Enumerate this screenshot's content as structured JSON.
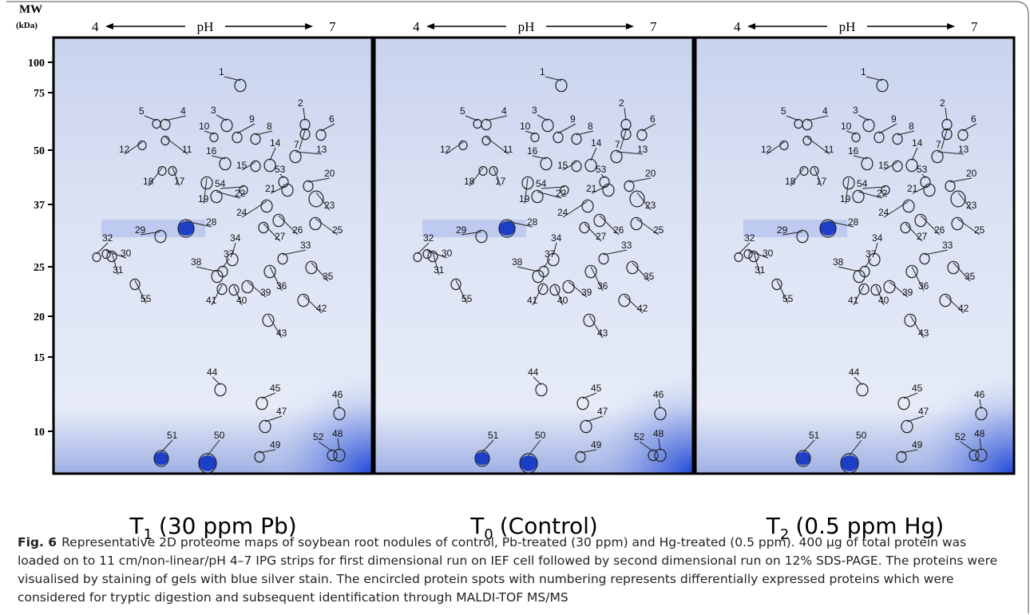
{
  "figure": {
    "mw_axis": {
      "title": "MW",
      "unit": "(kDa)",
      "ticks": [
        "100",
        "75",
        "50",
        "37",
        "25",
        "20",
        "15",
        "10"
      ]
    },
    "gels": [
      {
        "ph_left": "4",
        "ph_label": "pH",
        "ph_right": "7",
        "caption_letter": "T",
        "caption_sub": "1",
        "caption_rest": "(30 ppm Pb)",
        "spots": [
          "1",
          "2",
          "3",
          "4",
          "5",
          "6",
          "7",
          "8",
          "9",
          "10",
          "11",
          "12",
          "13",
          "14",
          "15",
          "16",
          "17",
          "18",
          "19",
          "20",
          "21",
          "22",
          "23",
          "24",
          "25",
          "26",
          "27",
          "28",
          "29",
          "30",
          "31",
          "32",
          "33",
          "34",
          "35",
          "36",
          "37",
          "38",
          "39",
          "40",
          "41",
          "42",
          "43",
          "44",
          "45",
          "46",
          "47",
          "48",
          "49",
          "50",
          "51",
          "52",
          "53",
          "54",
          "55"
        ]
      },
      {
        "ph_left": "4",
        "ph_label": "pH",
        "ph_right": "7",
        "caption_letter": "T",
        "caption_sub": "0",
        "caption_rest": "(Control)",
        "spots": [
          "1",
          "2",
          "3",
          "4",
          "5",
          "6",
          "7",
          "8",
          "9",
          "10",
          "11",
          "12",
          "13",
          "14",
          "15",
          "16",
          "17",
          "18",
          "19",
          "20",
          "21",
          "22",
          "23",
          "24",
          "25",
          "26",
          "27",
          "28",
          "29",
          "30",
          "31",
          "32",
          "33",
          "34",
          "35",
          "36",
          "37",
          "38",
          "39",
          "40",
          "41",
          "42",
          "43",
          "44",
          "45",
          "46",
          "47",
          "48",
          "49",
          "50",
          "51",
          "52",
          "53",
          "54",
          "55"
        ]
      },
      {
        "ph_left": "4",
        "ph_label": "pH",
        "ph_right": "7",
        "caption_letter": "T",
        "caption_sub": "2",
        "caption_rest": "(0.5 ppm Hg)",
        "spots": [
          "1",
          "2",
          "3",
          "4",
          "5",
          "6",
          "7",
          "8",
          "9",
          "10",
          "11",
          "12",
          "13",
          "14",
          "15",
          "16",
          "17",
          "18",
          "19",
          "20",
          "21",
          "22",
          "23",
          "24",
          "25",
          "26",
          "27",
          "28",
          "29",
          "30",
          "31",
          "32",
          "33",
          "34",
          "35",
          "36",
          "37",
          "38",
          "39",
          "40",
          "41",
          "42",
          "43",
          "44",
          "45",
          "46",
          "47",
          "48",
          "49",
          "50",
          "51",
          "52",
          "53",
          "54",
          "55"
        ]
      }
    ]
  },
  "caption": {
    "label": "Fig. 6",
    "text": "Representative 2D proteome maps of soybean root nodules of control, Pb-treated (30 ppm) and Hg-treated (0.5 ppm). 400 µg of total protein was loaded on to 11 cm/non-linear/pH 4–7 IPG strips for first dimensional run on IEF cell followed by second dimensional run on 12% SDS-PAGE. The proteins were visualised by staining of gels with blue silver stain. The encircled protein spots with numbering represents differentially expressed proteins which were considered for tryptic digestion and subsequent identification through MALDI-TOF MS/MS"
  }
}
